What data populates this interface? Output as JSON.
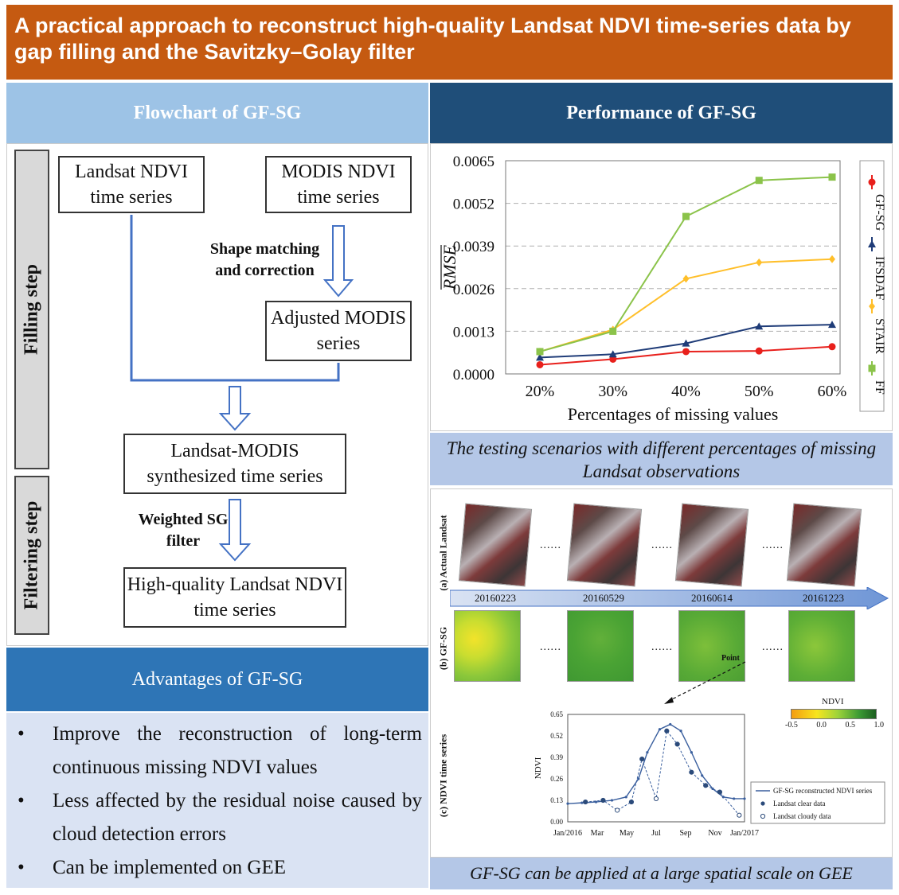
{
  "title": "A practical approach to reconstruct high-quality Landsat NDVI time-series data by gap filling and the Savitzky–Golay filter",
  "flowchart": {
    "header": "Flowchart of GF-SG",
    "filling_step": "Filling step",
    "filtering_step": "Filtering step",
    "landsat_ndvi": "Landsat NDVI time series",
    "modis_ndvi": "MODIS NDVI time series",
    "shape_matching": "Shape matching and correction",
    "adjusted_modis": "Adjusted MODIS series",
    "synthesized": "Landsat-MODIS synthesized time series",
    "weighted_sg": "Weighted SG filter",
    "high_quality": "High-quality Landsat NDVI time series"
  },
  "performance": {
    "header": "Performance of GF-SG",
    "caption": "The testing scenarios with different percentages of missing Landsat observations"
  },
  "chart_data": {
    "type": "line",
    "categories": [
      "20%",
      "30%",
      "40%",
      "50%",
      "60%"
    ],
    "xlabel": "Percentages of missing values",
    "ylabel": "RMSE",
    "ylim": [
      0.0,
      0.0065
    ],
    "yticks": [
      "0.0000",
      "0.0013",
      "0.0026",
      "0.0039",
      "0.0052",
      "0.0065"
    ],
    "grid": true,
    "legend_position": "right",
    "series": [
      {
        "name": "GF-SG",
        "color": "#e8201c",
        "marker": "circle",
        "values": [
          0.00028,
          0.00045,
          0.00068,
          0.0007,
          0.00083
        ]
      },
      {
        "name": "IFSDAF",
        "color": "#1f3c78",
        "marker": "triangle",
        "values": [
          0.0005,
          0.0006,
          0.00093,
          0.00145,
          0.0015
        ]
      },
      {
        "name": "STAIR",
        "color": "#ffbf2a",
        "marker": "diamond",
        "values": [
          0.00068,
          0.00135,
          0.0029,
          0.0034,
          0.0035
        ]
      },
      {
        "name": "FF",
        "color": "#8bc34a",
        "marker": "square",
        "values": [
          0.00068,
          0.0013,
          0.0048,
          0.0059,
          0.006
        ]
      }
    ]
  },
  "advantages": {
    "header": "Advantages of GF-SG",
    "items": [
      "Improve the reconstruction of long-term continuous missing NDVI values",
      "Less affected by the residual noise caused by cloud detection errors",
      "Can be implemented on GEE"
    ],
    "bullet": "•"
  },
  "gee_panel": {
    "caption": "GF-SG can be applied at a large spatial scale on GEE",
    "label_a": "(a) Actual Landsat",
    "label_b": "(b) GF-SG",
    "label_c": "(c) NDVI time series",
    "dates": [
      "20160223",
      "20160529",
      "20160614",
      "20161223"
    ],
    "ellipsis": "......",
    "point_label": "Point",
    "ndvi_label": "NDVI",
    "ndvi_ticks": [
      "-0.5",
      "0.0",
      "0.5",
      "1.0"
    ],
    "ts_ylabel": "NDVI",
    "ts_yticks": [
      "0.00",
      "0.13",
      "0.26",
      "0.39",
      "0.52",
      "0.65"
    ],
    "ts_xticks": [
      "Jan/2016",
      "Mar",
      "May",
      "Jul",
      "Sep",
      "Nov",
      "Jan/2017"
    ],
    "legend": [
      "GF-SG reconstructed NDVI series",
      "Landsat clear data",
      "Landsat cloudy data"
    ]
  }
}
